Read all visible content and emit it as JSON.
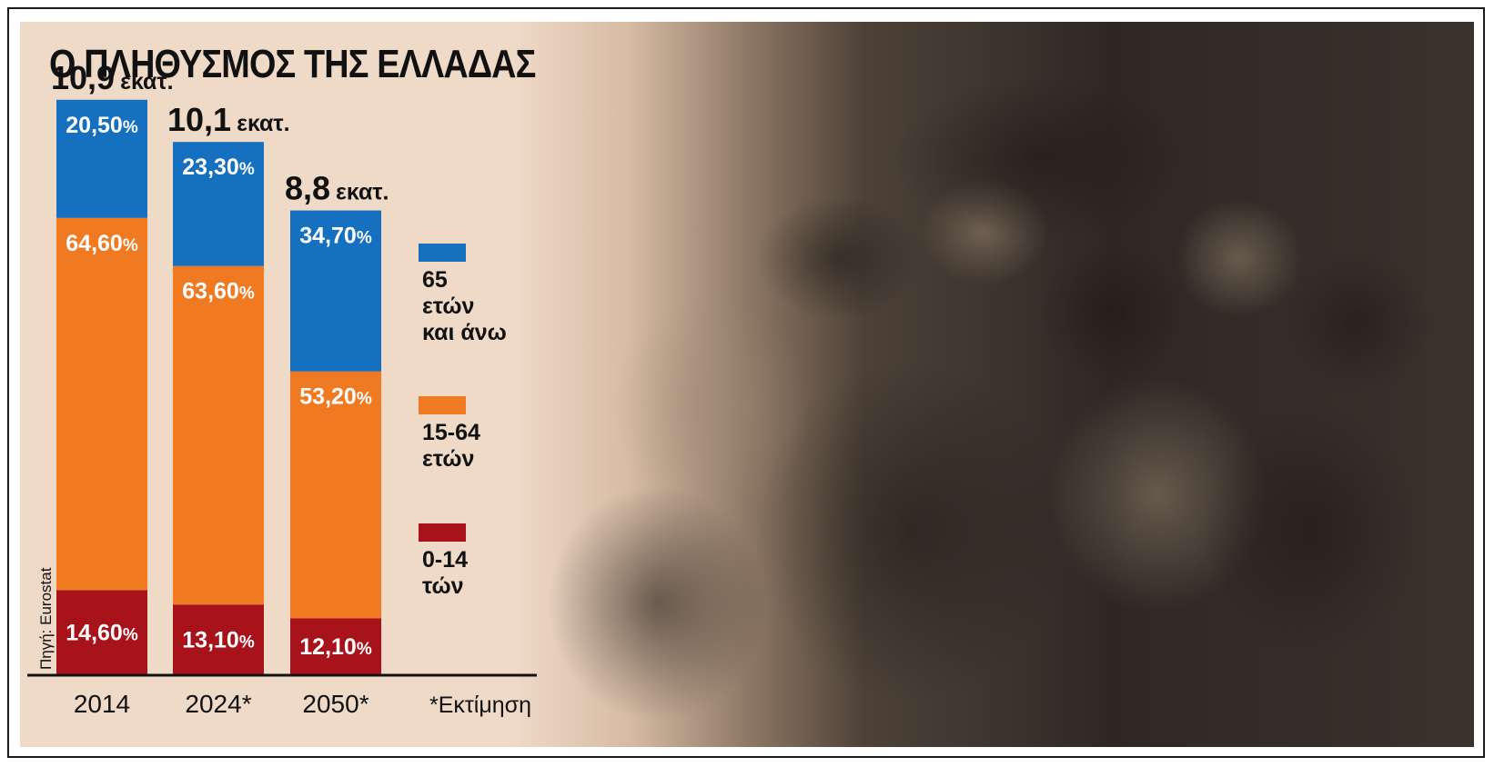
{
  "title": "Ο ΠΛΗΘΥΣΜΟΣ ΤΗΣ ΕΛΛΑΔΑΣ",
  "source": "Πηγή: Eurostat",
  "footnote": "*Εκτίμηση",
  "colors": {
    "age_65_plus": "#1570bf",
    "age_15_64": "#f07a22",
    "age_0_14": "#a8131b"
  },
  "chart_data": {
    "type": "bar",
    "stacked": true,
    "title": "Ο ΠΛΗΘΥΣΜΟΣ ΤΗΣ ΕΛΛΑΔΑΣ",
    "categories": [
      "2014",
      "2024*",
      "2050*"
    ],
    "totals": [
      {
        "value": "10,9",
        "unit": "εκατ."
      },
      {
        "value": "10,1",
        "unit": "εκατ."
      },
      {
        "value": "8,8",
        "unit": "εκατ."
      }
    ],
    "series": [
      {
        "name": "0-14 τών",
        "legend_lines": [
          "0-14",
          "τών"
        ],
        "color": "#a8131b",
        "values": [
          14.6,
          13.1,
          12.1
        ],
        "labels": [
          "14,60",
          "13,10",
          "12,10"
        ]
      },
      {
        "name": "15-64 ετών",
        "legend_lines": [
          "15-64",
          "ετών"
        ],
        "color": "#f07a22",
        "values": [
          64.6,
          63.6,
          53.2
        ],
        "labels": [
          "64,60",
          "63,60",
          "53,20"
        ]
      },
      {
        "name": "65 ετών και άνω",
        "legend_lines": [
          "65",
          "ετών",
          "και άνω"
        ],
        "color": "#1570bf",
        "values": [
          20.5,
          23.3,
          34.7
        ],
        "labels": [
          "20,50",
          "23,30",
          "34,70"
        ]
      }
    ],
    "percent_sign": "%",
    "legend_position": "right",
    "grid": false
  }
}
